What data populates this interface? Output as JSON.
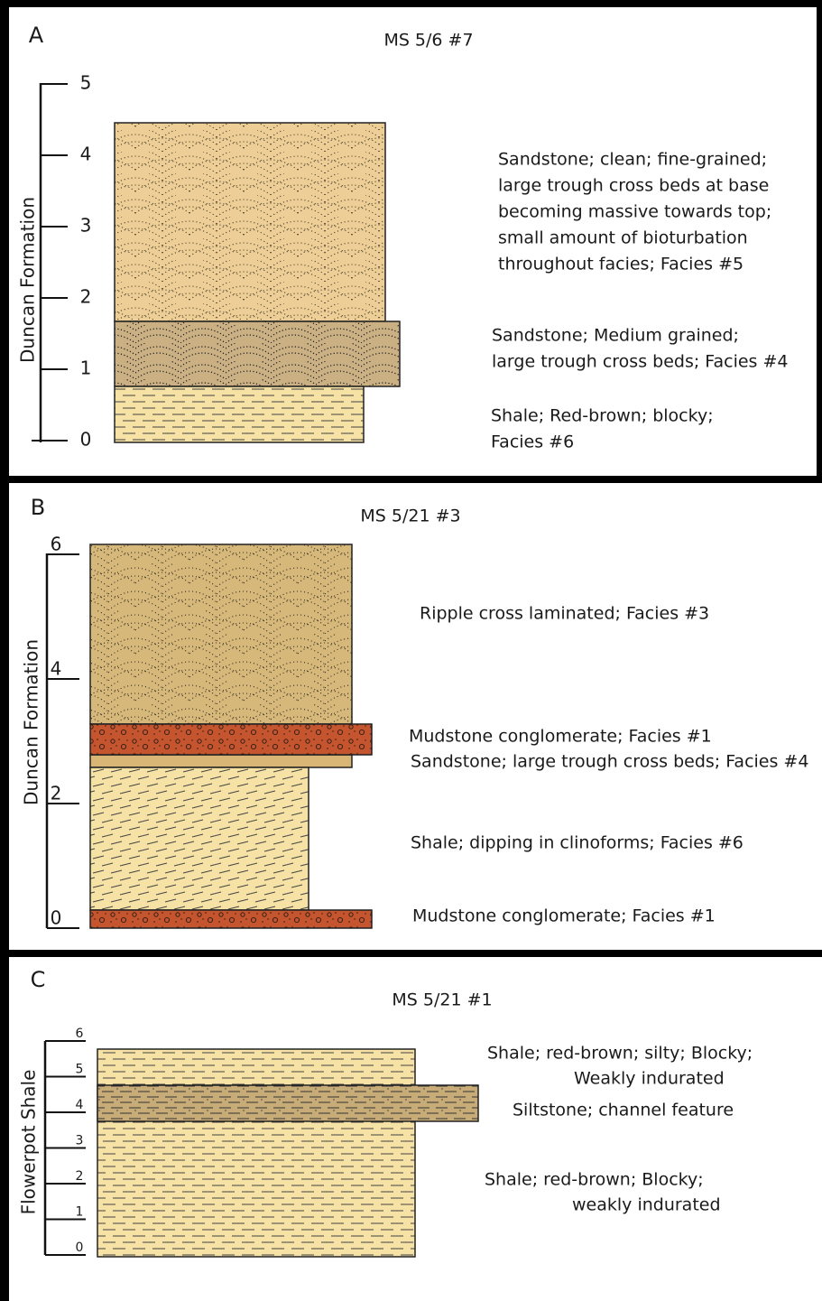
{
  "panels": [
    {
      "label": "A",
      "title": "MS 5/6 #7",
      "axis_title": "Duncan Formation",
      "scale_ticks": [
        0,
        1,
        2,
        3,
        4,
        5
      ],
      "descriptions": [
        [
          "Sandstone; clean; fine-grained;",
          "large trough cross beds at base",
          "becoming massive towards top;",
          "small amount of bioturbation",
          "throughout facies; Facies #5"
        ],
        [
          "Sandstone; Medium grained;",
          "large trough cross beds; Facies #4"
        ],
        [
          "Shale; Red-brown; blocky;",
          "Facies #6"
        ]
      ]
    },
    {
      "label": "B",
      "title": "MS 5/21 #3",
      "axis_title": "Duncan Formation",
      "scale_ticks": [
        0,
        2,
        4,
        6
      ],
      "descriptions": [
        [
          "Ripple cross laminated; Facies #3"
        ],
        [
          "Mudstone conglomerate; Facies #1"
        ],
        [
          "Sandstone; large trough cross beds; Facies #4"
        ],
        [
          "Shale; dipping in clinoforms; Facies #6"
        ],
        [
          "Mudstone conglomerate; Facies #1"
        ]
      ]
    },
    {
      "label": "C",
      "title": "MS 5/21 #1",
      "axis_title": "Flowerpot Shale",
      "scale_ticks": [
        0,
        1,
        2,
        3,
        4,
        5,
        6
      ],
      "descriptions": [
        [
          "Shale; red-brown; silty; Blocky;",
          "Weakly indurated"
        ],
        [
          "Siltstone; channel feature"
        ],
        [
          "Shale; red-brown; Blocky;",
          "weakly indurated"
        ]
      ]
    }
  ]
}
